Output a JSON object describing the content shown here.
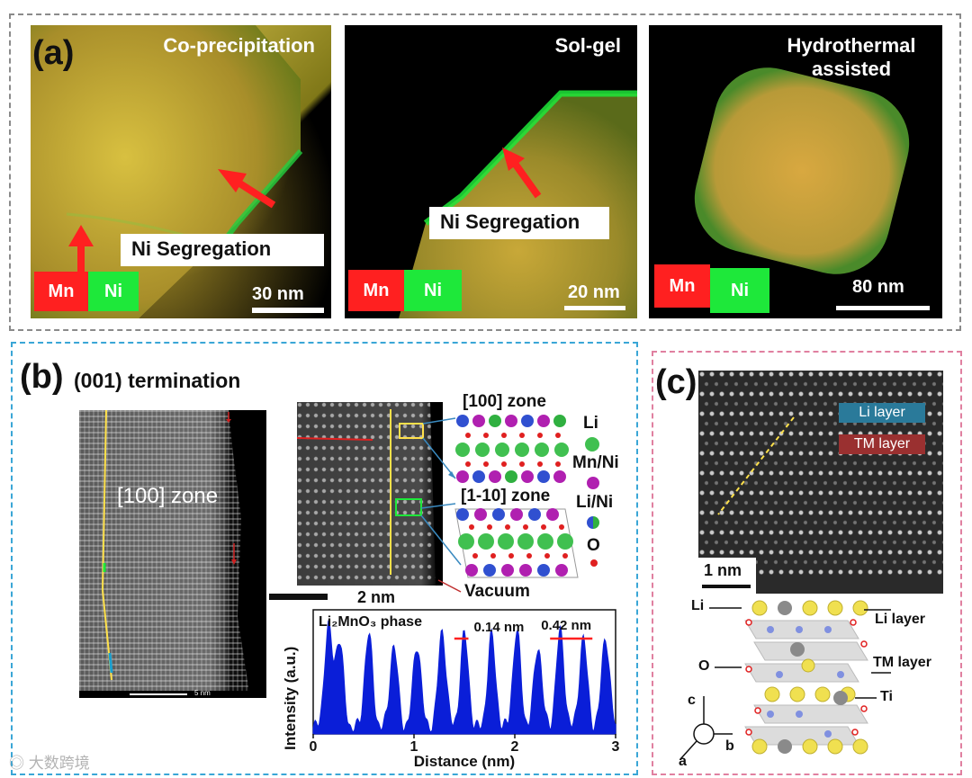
{
  "colors": {
    "frame_a": "#8a8a8a",
    "frame_b": "#3aa6d6",
    "frame_c": "#e080a0",
    "mn_red": "#ff2020",
    "ni_green": "#1ee83a",
    "arrow_red": "#ff2020",
    "profile_blue": "#0a1ed8",
    "li_sphere": "#f0e050",
    "mn_sphere": "#9a9a9a"
  },
  "panel_a": {
    "label": "(a)",
    "tiles": [
      {
        "title": "Co-precipitation",
        "annotation": "Ni Segregation",
        "legend_mn": "Mn",
        "legend_ni": "Ni",
        "scale": "30 nm"
      },
      {
        "title": "Sol-gel",
        "annotation": "Ni Segregation",
        "legend_mn": "Mn",
        "legend_ni": "Ni",
        "scale": "20 nm"
      },
      {
        "title": "Hydrothermal\nassisted",
        "legend_mn": "Mn",
        "legend_ni": "Ni",
        "scale": "80 nm"
      }
    ]
  },
  "panel_b": {
    "label": "(b)",
    "termination": "(001) termination",
    "zone_label": "[100] zone",
    "small_scale": "5 nm",
    "mid_scale": "2 nm",
    "zone_100": "[100] zone",
    "zone_110": "[1-10] zone",
    "vacuum": "Vacuum",
    "atoms": {
      "li": "Li",
      "mnni": "Mn/Ni",
      "lini": "Li/Ni",
      "o": "O"
    },
    "profile": {
      "phase_label": "Li₂MnO₃ phase",
      "annot_1": "0.14 nm",
      "annot_2": "0.42 nm",
      "ylabel": "Intensity (a.u.)",
      "xlabel": "Distance (nm)",
      "xticks": [
        "0",
        "1",
        "2",
        "3"
      ]
    }
  },
  "panel_c": {
    "label": "(c)",
    "li_layer": "Li layer",
    "tm_layer": "TM layer",
    "scale": "1 nm",
    "diagram": {
      "li": "Li",
      "li_layer": "Li layer",
      "o": "O",
      "tm_layer": "TM layer",
      "ti": "Ti",
      "axis_c": "c",
      "axis_b": "b",
      "axis_a": "a"
    }
  },
  "watermark": "大数跨境",
  "chart_data": {
    "type": "line",
    "title": "Li₂MnO₃ phase",
    "xlabel": "Distance (nm)",
    "ylabel": "Intensity (a.u.)",
    "xlim": [
      0,
      3
    ],
    "x_ticks": [
      0,
      1,
      2,
      3
    ],
    "peaks_nm": [
      0.15,
      0.26,
      0.55,
      0.8,
      1.03,
      1.28,
      1.5,
      1.77,
      2.02,
      2.23,
      2.45,
      2.68,
      2.9
    ],
    "peak_heights": [
      0.85,
      0.75,
      0.8,
      0.7,
      0.72,
      0.82,
      0.8,
      0.78,
      0.82,
      0.7,
      0.82,
      0.76,
      0.78
    ],
    "annotations": [
      {
        "label": "0.14 nm",
        "x_from": 1.4,
        "x_to": 1.54
      },
      {
        "label": "0.42 nm",
        "x_from": 2.35,
        "x_to": 2.77
      }
    ]
  }
}
